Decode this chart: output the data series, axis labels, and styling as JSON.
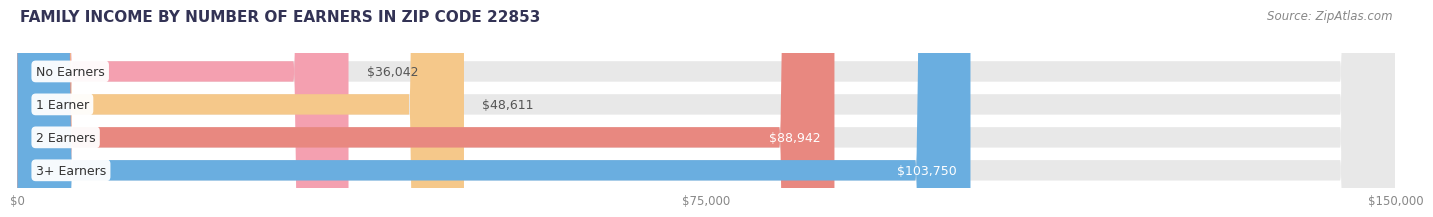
{
  "title": "FAMILY INCOME BY NUMBER OF EARNERS IN ZIP CODE 22853",
  "source": "Source: ZipAtlas.com",
  "categories": [
    "No Earners",
    "1 Earner",
    "2 Earners",
    "3+ Earners"
  ],
  "values": [
    36042,
    48611,
    88942,
    103750
  ],
  "labels": [
    "$36,042",
    "$48,611",
    "$88,942",
    "$103,750"
  ],
  "bar_colors": [
    "#f4a0b0",
    "#f5c88a",
    "#e88880",
    "#6aaee0"
  ],
  "bar_bg_color": "#e8e8e8",
  "background_color": "#ffffff",
  "xmax": 150000,
  "xticks": [
    0,
    75000,
    150000
  ],
  "xtick_labels": [
    "$0",
    "$75,000",
    "$150,000"
  ],
  "title_fontsize": 11,
  "source_fontsize": 8.5,
  "label_fontsize": 9,
  "category_fontsize": 9
}
